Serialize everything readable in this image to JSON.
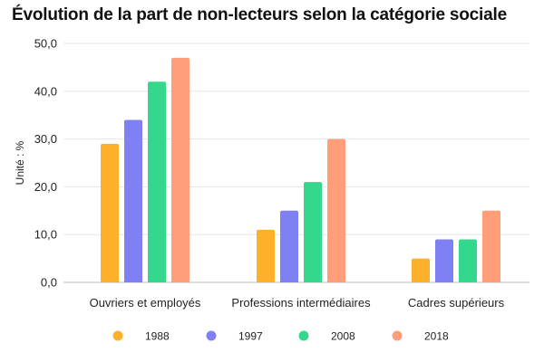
{
  "chart_data": {
    "type": "bar",
    "title": "Évolution de la part de non-lecteurs selon la catégorie sociale",
    "ylabel": "Unité : %",
    "xlabel": "",
    "categories": [
      "Ouvriers et employés",
      "Professions intermédiaires",
      "Cadres supérieurs"
    ],
    "series": [
      {
        "name": "1988",
        "color": "#FDB12A",
        "values": [
          29,
          11,
          5
        ]
      },
      {
        "name": "1997",
        "color": "#8080F5",
        "values": [
          34,
          15,
          9
        ]
      },
      {
        "name": "2008",
        "color": "#33D88C",
        "values": [
          42,
          21,
          9
        ]
      },
      {
        "name": "2018",
        "color": "#FF9E78",
        "values": [
          47,
          30,
          15
        ]
      }
    ],
    "ylim": [
      0,
      50
    ],
    "yticks": [
      "0,0",
      "10,0",
      "20,0",
      "30,0",
      "40,0",
      "50,0"
    ],
    "grid": true,
    "legend_position": "bottom"
  }
}
